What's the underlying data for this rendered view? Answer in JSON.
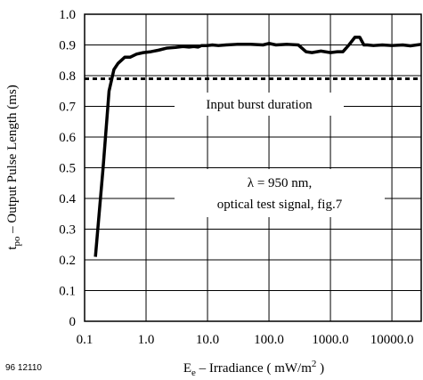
{
  "chart_data": {
    "type": "line",
    "x_scale": "log",
    "xlabel_main": "E",
    "xlabel_sub": "e",
    "xlabel_rest": " – Irradiance ( mW/m",
    "xlabel_sup": "2",
    "xlabel_end": " )",
    "ylabel_main": "t",
    "ylabel_sub": "po",
    "ylabel_rest": " – Output Pulse Length (ms)",
    "xlim": [
      0.1,
      30000
    ],
    "ylim": [
      0,
      1.0
    ],
    "grid": true,
    "x_ticks": [
      {
        "value": 0.1,
        "label": "0.1"
      },
      {
        "value": 1,
        "label": "1.0"
      },
      {
        "value": 10,
        "label": "10.0"
      },
      {
        "value": 100,
        "label": "100.0"
      },
      {
        "value": 1000,
        "label": "1000.0"
      },
      {
        "value": 10000,
        "label": "10000.0"
      }
    ],
    "y_ticks": [
      {
        "value": 0,
        "label": "0"
      },
      {
        "value": 0.1,
        "label": "0.1"
      },
      {
        "value": 0.2,
        "label": "0.2"
      },
      {
        "value": 0.3,
        "label": "0.3"
      },
      {
        "value": 0.4,
        "label": "0.4"
      },
      {
        "value": 0.5,
        "label": "0.5"
      },
      {
        "value": 0.6,
        "label": "0.6"
      },
      {
        "value": 0.7,
        "label": "0.7"
      },
      {
        "value": 0.8,
        "label": "0.8"
      },
      {
        "value": 0.9,
        "label": "0.9"
      },
      {
        "value": 1.0,
        "label": "1.0"
      }
    ],
    "series": [
      {
        "style": "solid",
        "x": [
          0.15,
          0.2,
          0.25,
          0.3,
          0.35,
          0.45,
          0.55,
          0.7,
          0.9,
          1.2,
          1.6,
          2.2,
          3,
          4,
          5,
          6,
          7,
          8,
          10,
          12,
          15,
          20,
          30,
          50,
          80,
          100,
          130,
          200,
          300,
          400,
          500,
          700,
          1000,
          1300,
          1600,
          2000,
          2500,
          3000,
          3500,
          4000,
          5000,
          7000,
          10000,
          15000,
          20000,
          30000
        ],
        "y": [
          0.21,
          0.5,
          0.75,
          0.82,
          0.84,
          0.86,
          0.86,
          0.87,
          0.875,
          0.878,
          0.883,
          0.89,
          0.892,
          0.895,
          0.893,
          0.895,
          0.893,
          0.898,
          0.898,
          0.9,
          0.898,
          0.9,
          0.902,
          0.902,
          0.9,
          0.905,
          0.9,
          0.902,
          0.9,
          0.878,
          0.875,
          0.88,
          0.875,
          0.878,
          0.878,
          0.9,
          0.925,
          0.925,
          0.9,
          0.9,
          0.898,
          0.9,
          0.898,
          0.9,
          0.897,
          0.902
        ]
      },
      {
        "style": "dashed",
        "x": [
          0.1,
          30000
        ],
        "y": [
          0.79,
          0.79
        ]
      }
    ],
    "annotations": {
      "burst_label": "Input burst duration",
      "lambda_line": "λ = 950 nm,",
      "signal_line": "optical test signal, fig.7",
      "figure_id": "96 12110"
    }
  }
}
